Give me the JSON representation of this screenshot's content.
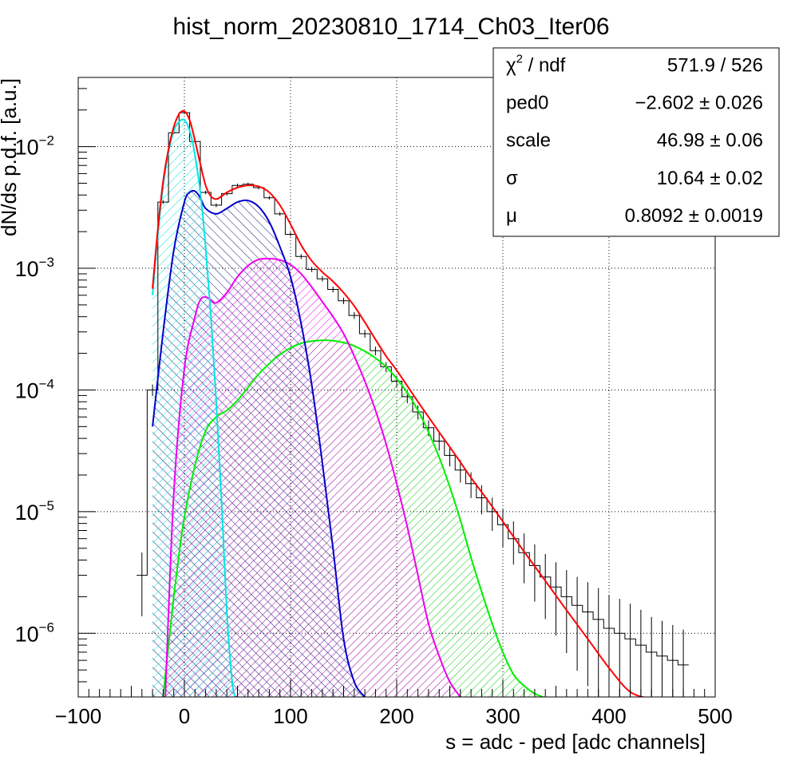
{
  "chart_data": {
    "type": "histogram",
    "title": "hist_norm_20230810_1714_Ch03_Iter06",
    "xlabel": "s = adc - ped [adc channels]",
    "ylabel": "dN/ds p.d.f. [a.u.]",
    "xlim": [
      -100,
      500
    ],
    "ylim": [
      3e-07,
      0.037
    ],
    "yscale": "log",
    "grid": true,
    "x_ticks": [
      {
        "value": -100,
        "label": "−100"
      },
      {
        "value": 0,
        "label": "0"
      },
      {
        "value": 100,
        "label": "100"
      },
      {
        "value": 200,
        "label": "200"
      },
      {
        "value": 300,
        "label": "300"
      },
      {
        "value": 400,
        "label": "400"
      },
      {
        "value": 500,
        "label": "500"
      }
    ],
    "y_ticks": [
      {
        "value": 1e-06,
        "base": "10",
        "exp": "−6"
      },
      {
        "value": 1e-05,
        "base": "10",
        "exp": "−5"
      },
      {
        "value": 0.0001,
        "base": "10",
        "exp": "−4"
      },
      {
        "value": 0.001,
        "base": "10",
        "exp": "−3"
      },
      {
        "value": 0.01,
        "base": "10",
        "exp": "−2"
      }
    ],
    "stats_box": {
      "position": "top-right",
      "rows": [
        {
          "label_main": "χ",
          "label_sup": "2",
          "label_rest": " / ndf",
          "value": "571.9 / 526"
        },
        {
          "label_main": "ped0",
          "label_sup": "",
          "label_rest": "",
          "value": "−2.602 ± 0.026"
        },
        {
          "label_main": "scale",
          "label_sup": "",
          "label_rest": "",
          "value": "46.98 ± 0.06"
        },
        {
          "label_main": "σ",
          "label_sup": "",
          "label_rest": "",
          "value": "10.64 ± 0.02"
        },
        {
          "label_main": "μ",
          "label_sup": "",
          "label_rest": "",
          "value": "0.8092 ± 0.0019"
        }
      ]
    },
    "data_histogram": {
      "color": "#000000",
      "x": [
        -40,
        -30,
        -20,
        -10,
        0,
        10,
        20,
        30,
        40,
        50,
        60,
        70,
        80,
        90,
        100,
        110,
        120,
        130,
        140,
        150,
        160,
        170,
        180,
        190,
        200,
        210,
        220,
        230,
        240,
        250,
        260,
        270,
        280,
        290,
        300,
        310,
        320,
        330,
        340,
        350,
        360,
        370,
        380,
        390,
        400,
        410,
        420,
        430,
        440,
        450,
        460,
        470
      ],
      "y": [
        3e-06,
        0.0001,
        0.0035,
        0.013,
        0.019,
        0.011,
        0.0042,
        0.0033,
        0.0041,
        0.0048,
        0.0049,
        0.0046,
        0.0038,
        0.0028,
        0.0019,
        0.00125,
        0.00098,
        0.00082,
        0.00067,
        0.00054,
        0.00041,
        0.00029,
        0.00021,
        0.000155,
        0.000118,
        8.8e-05,
        6.6e-05,
        4.9e-05,
        3.8e-05,
        2.9e-05,
        2.2e-05,
        1.7e-05,
        1.3e-05,
        1e-05,
        7.8e-06,
        6e-06,
        4.6e-06,
        3.6e-06,
        2.9e-06,
        2.4e-06,
        2e-06,
        1.7e-06,
        1.5e-06,
        1.3e-06,
        1.1e-06,
        1e-06,
        9e-07,
        8e-07,
        7e-07,
        6.5e-07,
        6e-07,
        5.5e-07
      ]
    },
    "series": [
      {
        "color": "#ff0000",
        "x": [
          -30,
          -25,
          -20,
          -15,
          -10,
          -5,
          0,
          5,
          10,
          15,
          20,
          25,
          30,
          35,
          40,
          50,
          60,
          70,
          80,
          90,
          100,
          110,
          120,
          130,
          140,
          150,
          160,
          170,
          180,
          190,
          200,
          210,
          220,
          230,
          240,
          250,
          260,
          270,
          280,
          290,
          300,
          320,
          340,
          360,
          380,
          400,
          420,
          440
        ],
        "y": [
          0.00068,
          0.0021,
          0.0052,
          0.0095,
          0.0145,
          0.0185,
          0.0195,
          0.0165,
          0.0112,
          0.0072,
          0.0048,
          0.0039,
          0.0037,
          0.0039,
          0.0042,
          0.0046,
          0.0048,
          0.0047,
          0.0042,
          0.0033,
          0.0023,
          0.00155,
          0.00115,
          0.00093,
          0.00078,
          0.00063,
          0.00049,
          0.00036,
          0.00026,
          0.00019,
          0.000145,
          0.000108,
          8e-05,
          6e-05,
          4.5e-05,
          3.4e-05,
          2.55e-05,
          1.9e-05,
          1.45e-05,
          1.1e-05,
          8.3e-06,
          4.7e-06,
          2.7e-06,
          1.55e-06,
          9e-07,
          5.2e-07,
          3.3e-07,
          2.9e-07
        ]
      },
      {
        "color": "#00e5e5",
        "fill": true,
        "x": [
          -30,
          -25,
          -20,
          -15,
          -10,
          -5,
          0,
          5,
          10,
          15,
          20,
          25,
          30,
          35,
          40,
          45,
          48
        ],
        "y": [
          0.0006,
          0.0019,
          0.0048,
          0.009,
          0.0135,
          0.016,
          0.0165,
          0.0135,
          0.0085,
          0.0042,
          0.0015,
          0.0004,
          8e-05,
          1.2e-05,
          1.5e-06,
          4e-07,
          3e-07
        ]
      },
      {
        "color": "#0000cc",
        "fill": true,
        "x": [
          -30,
          -20,
          -10,
          0,
          5,
          10,
          15,
          20,
          30,
          40,
          50,
          60,
          70,
          80,
          90,
          100,
          110,
          120,
          130,
          140,
          150,
          160,
          170
        ],
        "y": [
          5e-05,
          0.0003,
          0.0014,
          0.0035,
          0.0042,
          0.0043,
          0.0038,
          0.0031,
          0.0028,
          0.0031,
          0.0035,
          0.0036,
          0.0032,
          0.0024,
          0.0015,
          0.00085,
          0.00035,
          0.00011,
          2.5e-05,
          5e-06,
          9e-07,
          4e-07,
          3e-07
        ]
      },
      {
        "color": "#ee00ee",
        "fill": true,
        "x": [
          -18,
          -10,
          0,
          10,
          15,
          20,
          25,
          30,
          40,
          50,
          60,
          70,
          80,
          90,
          100,
          110,
          120,
          130,
          140,
          150,
          160,
          170,
          180,
          190,
          200,
          210,
          220,
          230,
          240,
          250,
          260
        ],
        "y": [
          3e-07,
          1.4e-05,
          0.00015,
          0.0004,
          0.00055,
          0.00058,
          0.00055,
          0.00052,
          0.00063,
          0.00085,
          0.00105,
          0.00118,
          0.0012,
          0.00117,
          0.00107,
          0.0009,
          0.0007,
          0.00053,
          0.0004,
          0.00029,
          0.00019,
          0.000118,
          6.8e-05,
          3.6e-05,
          1.7e-05,
          7.5e-06,
          3e-06,
          1.2e-06,
          6.5e-07,
          4e-07,
          3e-07
        ]
      },
      {
        "color": "#00ee00",
        "fill": true,
        "x": [
          -20,
          -15,
          -10,
          -5,
          0,
          10,
          20,
          30,
          40,
          50,
          60,
          70,
          80,
          90,
          100,
          110,
          120,
          130,
          140,
          150,
          160,
          170,
          180,
          190,
          200,
          210,
          220,
          230,
          240,
          250,
          260,
          270,
          280,
          290,
          300,
          310,
          320,
          330,
          338
        ],
        "y": [
          3e-07,
          8e-07,
          2e-06,
          4.5e-06,
          9e-06,
          2.4e-05,
          4.6e-05,
          6e-05,
          6.8e-05,
          8.2e-05,
          0.000105,
          0.000135,
          0.000165,
          0.000195,
          0.000222,
          0.000242,
          0.000252,
          0.000256,
          0.000254,
          0.000245,
          0.00023,
          0.000208,
          0.000183,
          0.000155,
          0.000124,
          9.5e-05,
          6.8e-05,
          4.5e-05,
          2.8e-05,
          1.6e-05,
          8.5e-06,
          4.2e-06,
          2.2e-06,
          1.2e-06,
          7e-07,
          4.6e-07,
          3.7e-07,
          3.2e-07,
          3e-07
        ]
      }
    ]
  }
}
